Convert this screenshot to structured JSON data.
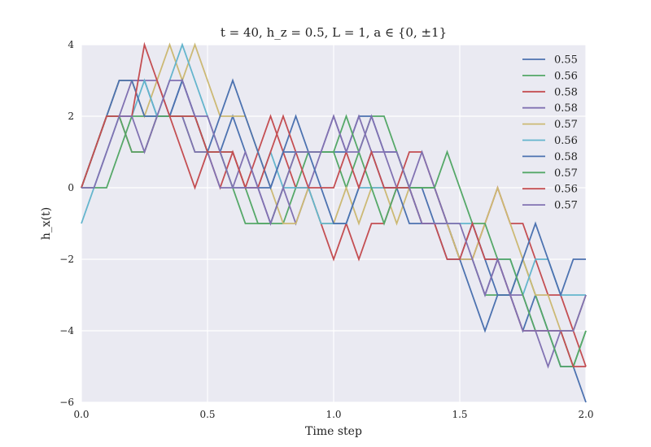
{
  "chart_data": {
    "type": "line",
    "title": "t = 40, h_z = 0.5, L = 1, a ∈ {0, ±1}",
    "xlabel": "Time step",
    "ylabel": "h_x(t)",
    "xlim": [
      0.0,
      2.0
    ],
    "ylim": [
      -6,
      4
    ],
    "xticks": [
      "0.0",
      "0.5",
      "1.0",
      "1.5",
      "2.0"
    ],
    "yticks": [
      "−6",
      "−4",
      "−2",
      "0",
      "2",
      "4"
    ],
    "grid": true,
    "legend_position": "top-right",
    "x": [
      0.0,
      0.05,
      0.1,
      0.15,
      0.2,
      0.25,
      0.3,
      0.35,
      0.4,
      0.45,
      0.5,
      0.55,
      0.6,
      0.65,
      0.7,
      0.75,
      0.8,
      0.85,
      0.9,
      0.95,
      1.0,
      1.05,
      1.1,
      1.15,
      1.2,
      1.25,
      1.3,
      1.35,
      1.4,
      1.45,
      1.5,
      1.55,
      1.6,
      1.65,
      1.7,
      1.75,
      1.8,
      1.85,
      1.9,
      1.95,
      2.0
    ],
    "series": [
      {
        "name": "0.55",
        "color": "#4C72B0",
        "values": [
          0,
          1,
          2,
          3,
          3,
          3,
          2,
          2,
          3,
          2,
          1,
          1,
          2,
          1,
          0,
          0,
          1,
          1,
          1,
          1,
          1,
          1,
          2,
          2,
          1,
          1,
          0,
          0,
          -1,
          -1,
          -2,
          -3,
          -4,
          -3,
          -3,
          -4,
          -3,
          -4,
          -5,
          -5,
          -6
        ]
      },
      {
        "name": "0.56",
        "color": "#55A868",
        "values": [
          0,
          0,
          0,
          1,
          2,
          2,
          2,
          2,
          2,
          1,
          1,
          1,
          1,
          0,
          -1,
          -1,
          -1,
          0,
          1,
          1,
          1,
          0,
          1,
          2,
          2,
          1,
          0,
          0,
          0,
          -1,
          -2,
          -2,
          -3,
          -3,
          -3,
          -2,
          -3,
          -4,
          -4,
          -5,
          -4
        ]
      },
      {
        "name": "0.58",
        "color": "#C44E52",
        "values": [
          0,
          1,
          2,
          2,
          1,
          1,
          2,
          2,
          1,
          0,
          1,
          0,
          1,
          0,
          1,
          2,
          1,
          0,
          0,
          -1,
          -2,
          -1,
          -2,
          -1,
          -1,
          0,
          1,
          1,
          0,
          -1,
          -2,
          -2,
          -1,
          0,
          -1,
          -1,
          -2,
          -3,
          -3,
          -4,
          -5
        ]
      },
      {
        "name": "0.58",
        "color": "#8172B2",
        "values": [
          0,
          1,
          2,
          2,
          3,
          3,
          3,
          2,
          2,
          1,
          1,
          0,
          0,
          1,
          0,
          -1,
          0,
          -1,
          0,
          1,
          2,
          1,
          2,
          1,
          1,
          0,
          0,
          1,
          0,
          -1,
          -2,
          -2,
          -3,
          -2,
          -3,
          -3,
          -4,
          -5,
          -4,
          -4,
          -3
        ]
      },
      {
        "name": "0.57",
        "color": "#CCB974",
        "values": [
          0,
          1,
          2,
          3,
          3,
          2,
          3,
          4,
          3,
          4,
          3,
          2,
          2,
          2,
          1,
          0,
          -1,
          -1,
          0,
          -1,
          -1,
          0,
          -1,
          0,
          0,
          -1,
          0,
          -1,
          -1,
          -1,
          -2,
          -2,
          -1,
          0,
          -1,
          -2,
          -3,
          -3,
          -4,
          -4,
          -3
        ]
      },
      {
        "name": "0.56",
        "color": "#64B5CD",
        "values": [
          -1,
          0,
          1,
          2,
          2,
          3,
          2,
          3,
          4,
          3,
          2,
          1,
          0,
          0,
          0,
          1,
          0,
          0,
          0,
          -1,
          -1,
          -1,
          0,
          0,
          0,
          0,
          0,
          -1,
          -1,
          -1,
          -1,
          -1,
          -2,
          -2,
          -2,
          -3,
          -2,
          -2,
          -3,
          -3,
          -3
        ]
      },
      {
        "name": "0.58",
        "color": "#4C72B0",
        "values": [
          0,
          1,
          2,
          3,
          3,
          2,
          2,
          2,
          3,
          2,
          1,
          2,
          3,
          2,
          1,
          0,
          1,
          2,
          1,
          0,
          -1,
          -1,
          0,
          1,
          0,
          0,
          -1,
          -1,
          -1,
          -2,
          -2,
          -1,
          -2,
          -3,
          -3,
          -2,
          -1,
          -2,
          -3,
          -2,
          -2
        ]
      },
      {
        "name": "0.57",
        "color": "#55A868",
        "values": [
          0,
          1,
          2,
          2,
          1,
          1,
          2,
          2,
          2,
          2,
          1,
          1,
          0,
          -1,
          -1,
          -1,
          0,
          1,
          1,
          1,
          1,
          2,
          1,
          0,
          -1,
          0,
          0,
          0,
          0,
          1,
          0,
          -1,
          -1,
          -2,
          -2,
          -3,
          -4,
          -4,
          -5,
          -5,
          -4
        ]
      },
      {
        "name": "0.56",
        "color": "#C44E52",
        "values": [
          0,
          1,
          2,
          2,
          2,
          4,
          3,
          2,
          2,
          2,
          1,
          1,
          1,
          0,
          0,
          1,
          2,
          1,
          0,
          0,
          0,
          1,
          0,
          1,
          0,
          0,
          0,
          -1,
          -1,
          -2,
          -2,
          -1,
          -2,
          -2,
          -3,
          -4,
          -4,
          -4,
          -4,
          -5,
          -5
        ]
      },
      {
        "name": "0.57",
        "color": "#8172B2",
        "values": [
          0,
          0,
          1,
          2,
          2,
          1,
          2,
          3,
          3,
          2,
          2,
          1,
          0,
          0,
          0,
          -1,
          0,
          1,
          1,
          1,
          2,
          1,
          1,
          2,
          1,
          1,
          0,
          -1,
          -1,
          -1,
          -1,
          -2,
          -3,
          -2,
          -3,
          -4,
          -4,
          -4,
          -4,
          -4,
          -3
        ]
      }
    ]
  }
}
